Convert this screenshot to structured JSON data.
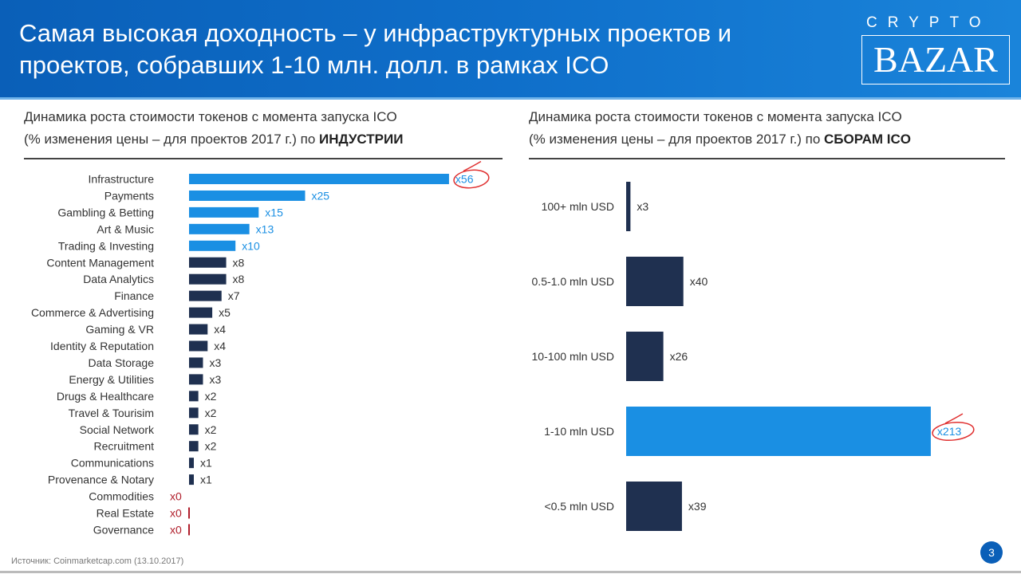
{
  "header": {
    "title": "Самая высокая доходность – у инфраструктурных проектов и проектов, собравших 1-10 млн. долл. в рамках ICO",
    "logo_top": "CRYPTO",
    "logo_main": "BAZAR"
  },
  "left": {
    "subtitle_line1": "Динамика роста стоимости токенов с момента запуска ICO",
    "subtitle_line2": "(% изменения цены – для проектов 2017 г.) по ",
    "subtitle_bold": "ИНДУСТРИИ"
  },
  "right": {
    "subtitle_line1": "Динамика роста стоимости токенов с момента запуска ICO",
    "subtitle_line2": "(% изменения цены – для проектов 2017 г.) по ",
    "subtitle_bold": "СБОРАМ ICO"
  },
  "colors": {
    "highlight": "#1a8fe3",
    "default": "#1f3050",
    "zero": "#b01e2b",
    "circle": "#e03030",
    "header": "#0a5fb8"
  },
  "chart_data": [
    {
      "type": "bar",
      "orientation": "horizontal",
      "value_prefix": "x",
      "categories": [
        "Infrastructure",
        "Payments",
        "Gambling & Betting",
        "Art & Music",
        "Trading & Investing",
        "Content Management",
        "Data Analytics",
        "Finance",
        "Commerce & Advertising",
        "Gaming & VR",
        "Identity & Reputation",
        "Data Storage",
        "Energy & Utilities",
        "Drugs & Healthcare",
        "Travel & Tourisim",
        "Social Network",
        "Recruitment",
        "Communications",
        "Provenance & Notary",
        "Commodities",
        "Real Estate",
        "Governance"
      ],
      "values": [
        56,
        25,
        15,
        13,
        10,
        8,
        8,
        7,
        5,
        4,
        4,
        3,
        3,
        2,
        2,
        2,
        2,
        1,
        1,
        0,
        0,
        0
      ],
      "highlighted": [
        "Infrastructure",
        "Payments",
        "Gambling & Betting",
        "Art & Music",
        "Trading & Investing"
      ],
      "circled": "Infrastructure"
    },
    {
      "type": "bar",
      "orientation": "horizontal",
      "value_prefix": "x",
      "categories": [
        "100+ mln USD",
        "0.5-1.0 mln USD",
        "10-100 mln USD",
        "1-10 mln USD",
        "<0.5 mln USD"
      ],
      "values": [
        3,
        40,
        26,
        213,
        39
      ],
      "highlighted": [
        "1-10 mln USD"
      ],
      "circled": "1-10 mln USD"
    }
  ],
  "footer": {
    "source": "Источник: Coinmarketcap.com  (13.10.2017)",
    "page": "3"
  }
}
